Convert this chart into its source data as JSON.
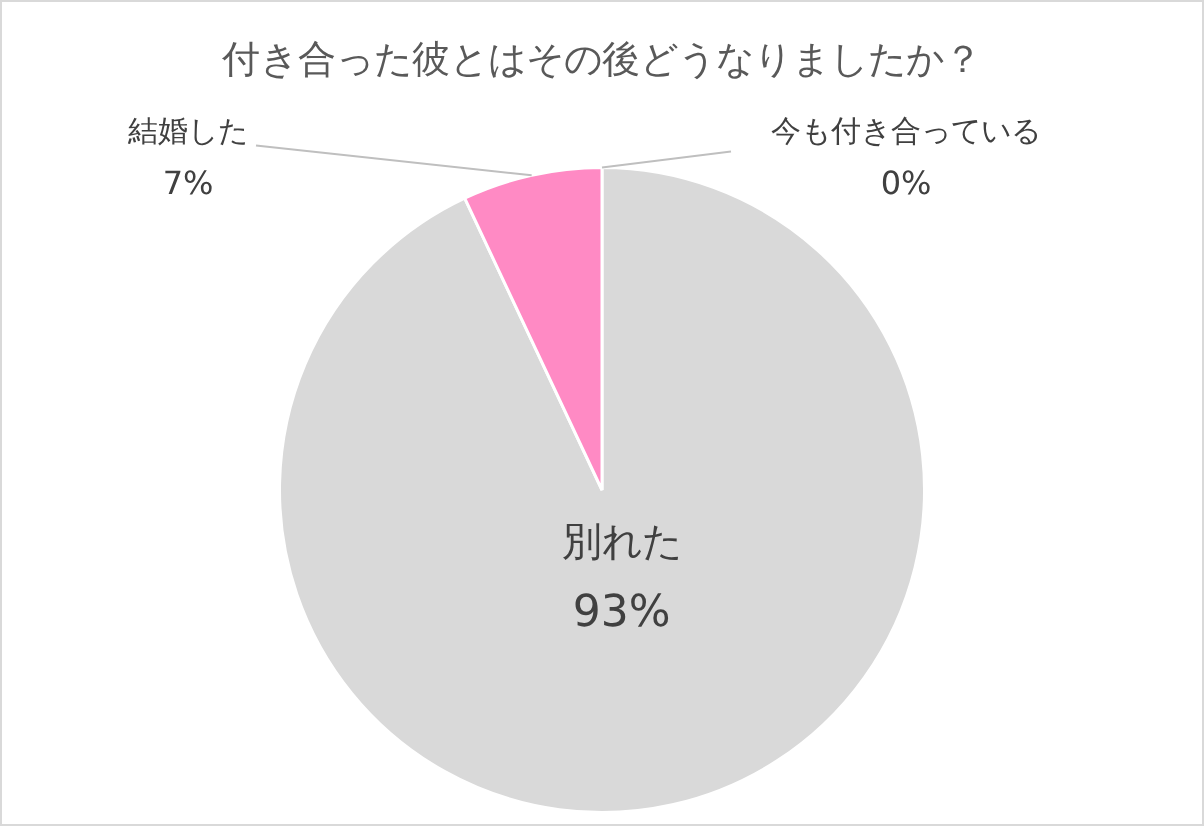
{
  "chart_data": {
    "type": "pie",
    "title": "付き合った彼とはその後どうなりましたか？",
    "categories": [
      "別れた",
      "結婚した",
      "今も付き合っている"
    ],
    "values": [
      93,
      7,
      0
    ],
    "colors": [
      "#d9d9d9",
      "#ff8ac4",
      "#a5a5a5"
    ],
    "value_labels": [
      "93%",
      "7%",
      "0%"
    ]
  }
}
